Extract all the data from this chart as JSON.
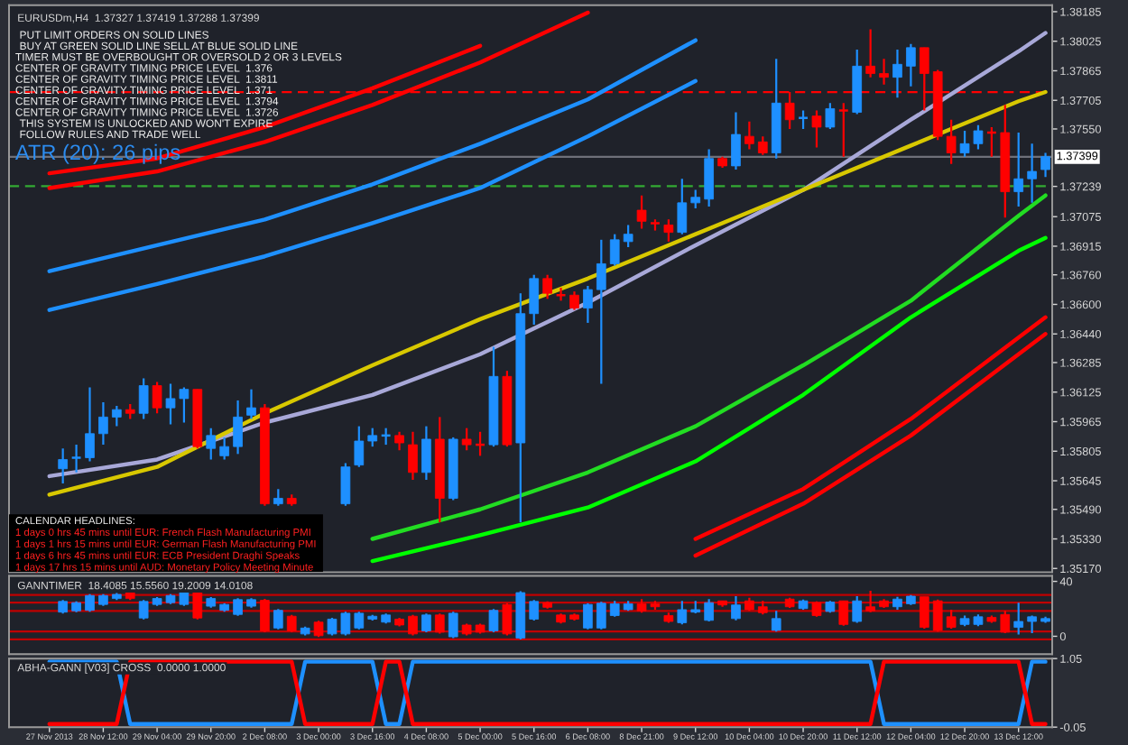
{
  "chart_data": [
    {
      "type": "candlestick",
      "title": "EURUSDm,H4  1.37327 1.37419 1.37288 1.37399",
      "ohlc": [
        null,
        [
          1.3571,
          1.3582,
          1.3563,
          1.3576
        ],
        [
          1.3577,
          1.3584,
          1.3569,
          1.3577
        ],
        [
          1.3577,
          1.3615,
          1.3575,
          1.359
        ],
        [
          1.359,
          1.3607,
          1.3584,
          1.3599
        ],
        [
          1.3599,
          1.3605,
          1.3594,
          1.3603
        ],
        [
          1.3603,
          1.3606,
          1.3598,
          1.3601
        ],
        [
          1.3601,
          1.362,
          1.3598,
          1.3616
        ],
        [
          1.3616,
          1.3618,
          1.3601,
          1.3604
        ],
        [
          1.3604,
          1.3617,
          1.3595,
          1.3609
        ],
        [
          1.3609,
          1.3615,
          1.3596,
          1.3614
        ],
        [
          1.3614,
          1.3614,
          1.3582,
          1.3583
        ],
        [
          1.3582,
          1.3593,
          1.3576,
          1.3589
        ],
        [
          1.3578,
          1.3588,
          1.3576,
          1.3583
        ],
        [
          1.3583,
          1.3608,
          1.3579,
          1.3599
        ],
        [
          1.36,
          1.3614,
          1.3598,
          1.3604
        ],
        [
          1.3604,
          1.3606,
          1.3551,
          1.3552
        ],
        [
          1.3552,
          1.356,
          1.3551,
          1.3555
        ],
        [
          1.3555,
          1.3557,
          1.3551,
          1.3552
        ],
        null,
        null,
        null,
        [
          1.3552,
          1.3574,
          1.3551,
          1.3572
        ],
        [
          1.3573,
          1.3594,
          1.3572,
          1.3586
        ],
        [
          1.3586,
          1.3593,
          1.3583,
          1.3589
        ],
        [
          1.3589,
          1.3593,
          1.3584,
          1.3589
        ],
        [
          1.3589,
          1.3591,
          1.3581,
          1.3585
        ],
        [
          1.3584,
          1.3591,
          1.3565,
          1.3569
        ],
        [
          1.3569,
          1.3594,
          1.3565,
          1.3587
        ],
        [
          1.3587,
          1.3599,
          1.3542,
          1.3555
        ],
        [
          1.3555,
          1.3588,
          1.3554,
          1.3587
        ],
        [
          1.3587,
          1.3593,
          1.3581,
          1.3584
        ],
        [
          1.3584,
          1.3591,
          1.3578,
          1.3584
        ],
        [
          1.3584,
          1.3637,
          1.3583,
          1.3621
        ],
        [
          1.3621,
          1.3624,
          1.3583,
          1.3584
        ],
        [
          1.3585,
          1.3666,
          1.3542,
          1.3655
        ],
        [
          1.3655,
          1.3676,
          1.3649,
          1.3674
        ],
        [
          1.3674,
          1.3676,
          1.3663,
          1.3666
        ],
        [
          1.3665,
          1.3669,
          1.3662,
          1.3665
        ],
        [
          1.3665,
          1.3667,
          1.3657,
          1.3658
        ],
        [
          1.3658,
          1.367,
          1.365,
          1.3668
        ],
        [
          1.3668,
          1.3695,
          1.3617,
          1.3682
        ],
        [
          1.3682,
          1.3698,
          1.3681,
          1.3695
        ],
        [
          1.3694,
          1.3703,
          1.3691,
          1.3698
        ],
        [
          1.3711,
          1.3719,
          1.3701,
          1.3705
        ],
        [
          1.3704,
          1.3706,
          1.37,
          1.3704
        ],
        [
          1.3703,
          1.3706,
          1.3694,
          1.3699
        ],
        [
          1.3699,
          1.3728,
          1.3698,
          1.3715
        ],
        [
          1.3715,
          1.3722,
          1.3712,
          1.3718
        ],
        [
          1.3717,
          1.3744,
          1.3713,
          1.3739
        ],
        [
          1.3739,
          1.374,
          1.3734,
          1.3735
        ],
        [
          1.3735,
          1.3764,
          1.3733,
          1.3752
        ],
        [
          1.3751,
          1.3759,
          1.3744,
          1.3747
        ],
        [
          1.3748,
          1.3751,
          1.3741,
          1.3742
        ],
        [
          1.3742,
          1.3793,
          1.3739,
          1.3769
        ],
        [
          1.3769,
          1.3775,
          1.3755,
          1.376
        ],
        [
          1.3761,
          1.3765,
          1.3755,
          1.3761
        ],
        [
          1.3762,
          1.3765,
          1.3745,
          1.3756
        ],
        [
          1.3756,
          1.3769,
          1.3755,
          1.3766
        ],
        [
          1.3765,
          1.3769,
          1.374,
          1.3765
        ],
        [
          1.3764,
          1.3798,
          1.3763,
          1.3789
        ],
        [
          1.3789,
          1.3809,
          1.3783,
          1.3785
        ],
        [
          1.3785,
          1.3793,
          1.3779,
          1.3783
        ],
        [
          1.3783,
          1.3798,
          1.3772,
          1.379
        ],
        [
          1.3789,
          1.3801,
          1.3778,
          1.3799
        ],
        [
          1.3799,
          1.3799,
          1.3765,
          1.3785
        ],
        [
          1.3786,
          1.3787,
          1.3749,
          1.3751
        ],
        [
          1.3751,
          1.376,
          1.3736,
          1.3742
        ],
        [
          1.3742,
          1.3754,
          1.374,
          1.3747
        ],
        [
          1.3747,
          1.3757,
          1.3744,
          1.3754
        ],
        [
          1.3753,
          1.3756,
          1.374,
          1.3753
        ],
        [
          1.3753,
          1.3768,
          1.3707,
          1.3721
        ],
        [
          1.3721,
          1.3753,
          1.3713,
          1.3728
        ],
        [
          1.3728,
          1.3747,
          1.3715,
          1.3732
        ],
        [
          1.3733,
          1.3742,
          1.3729,
          1.374
        ]
      ],
      "colors": [
        null,
        "#1e90ff",
        "#1e90ff",
        "#1e90ff",
        "#1e90ff",
        "#1e90ff",
        "#ff0000",
        "#1e90ff",
        "#ff0000",
        "#1e90ff",
        "#1e90ff",
        "#ff0000",
        "#1e90ff",
        "#1e90ff",
        "#1e90ff",
        "#1e90ff",
        "#ff0000",
        "#1e90ff",
        "#ff0000",
        null,
        null,
        null,
        "#1e90ff",
        "#1e90ff",
        "#1e90ff",
        "#1e90ff",
        "#ff0000",
        "#ff0000",
        "#1e90ff",
        "#ff0000",
        "#1e90ff",
        "#ff0000",
        "#ff0000",
        "#1e90ff",
        "#ff0000",
        "#1e90ff",
        "#1e90ff",
        "#ff0000",
        "#ff0000",
        "#ff0000",
        "#1e90ff",
        "#1e90ff",
        "#1e90ff",
        "#1e90ff",
        "#ff0000",
        "#ff0000",
        "#ff0000",
        "#1e90ff",
        "#1e90ff",
        "#1e90ff",
        "#ff0000",
        "#1e90ff",
        "#ff0000",
        "#ff0000",
        "#1e90ff",
        "#ff0000",
        "#1e90ff",
        "#ff0000",
        "#1e90ff",
        "#ff0000",
        "#1e90ff",
        "#ff0000",
        "#ff0000",
        "#1e90ff",
        "#1e90ff",
        "#ff0000",
        "#ff0000",
        "#ff0000",
        "#1e90ff",
        "#1e90ff",
        "#ff0000",
        "#ff0000",
        "#1e90ff",
        "#1e90ff",
        "#1e90ff"
      ],
      "series": [
        {
          "type": "line",
          "color": "#a8a8d8",
          "values": [
            1.3567,
            null,
            null,
            null,
            null,
            null,
            null,
            null,
            1.3576,
            null,
            null,
            null,
            null,
            null,
            null,
            null,
            1.3596,
            null,
            null,
            null,
            null,
            null,
            null,
            null,
            1.3611,
            null,
            null,
            null,
            null,
            null,
            null,
            null,
            1.3633,
            null,
            null,
            null,
            null,
            null,
            null,
            null,
            1.3661,
            null,
            null,
            null,
            null,
            null,
            null,
            null,
            1.3692,
            null,
            null,
            null,
            null,
            null,
            null,
            null,
            1.3722,
            null,
            null,
            null,
            null,
            null,
            null,
            null,
            1.376,
            null,
            null,
            null,
            null,
            null,
            null,
            null,
            1.3797,
            null,
            1.3807
          ]
        },
        {
          "type": "line",
          "color": "#d8c800",
          "values": [
            1.3557,
            null,
            null,
            null,
            null,
            null,
            null,
            null,
            1.3572,
            null,
            null,
            null,
            null,
            null,
            null,
            null,
            1.3601,
            null,
            null,
            null,
            null,
            null,
            null,
            null,
            1.3627,
            null,
            null,
            null,
            null,
            null,
            null,
            null,
            1.3652,
            null,
            null,
            null,
            null,
            null,
            null,
            null,
            1.3674,
            null,
            null,
            null,
            null,
            null,
            null,
            null,
            1.3698,
            null,
            null,
            null,
            null,
            null,
            null,
            null,
            1.3722,
            null,
            null,
            null,
            null,
            null,
            null,
            null,
            1.3746,
            null,
            null,
            null,
            null,
            null,
            null,
            null,
            1.377,
            null,
            1.3775
          ]
        },
        {
          "type": "line",
          "color": "#1e90ff",
          "values": [
            1.3678,
            null,
            null,
            null,
            null,
            null,
            null,
            null,
            1.3692,
            null,
            null,
            null,
            null,
            null,
            null,
            null,
            1.3706,
            null,
            null,
            null,
            null,
            null,
            null,
            null,
            1.3725,
            null,
            null,
            null,
            null,
            null,
            null,
            null,
            1.3747,
            null,
            null,
            null,
            null,
            null,
            null,
            null,
            1.3771,
            null,
            null,
            null,
            null,
            null,
            null,
            null,
            1.3803,
            null,
            null,
            null,
            null,
            null,
            null,
            null,
            null,
            null,
            null,
            null,
            null,
            null,
            null,
            null,
            null,
            null,
            null,
            null,
            null,
            null,
            null,
            null,
            null,
            null,
            null
          ]
        },
        {
          "type": "line",
          "color": "#1e90ff",
          "values": [
            1.3657,
            null,
            null,
            null,
            null,
            null,
            null,
            null,
            1.3671,
            null,
            null,
            null,
            null,
            null,
            null,
            null,
            1.3686,
            null,
            null,
            null,
            null,
            null,
            null,
            null,
            1.3704,
            null,
            null,
            null,
            null,
            null,
            null,
            null,
            1.3723,
            null,
            null,
            null,
            null,
            null,
            null,
            null,
            1.3751,
            null,
            null,
            null,
            null,
            null,
            null,
            null,
            1.3781,
            null,
            null,
            null,
            null,
            null,
            null,
            null,
            null,
            null,
            null,
            null,
            null,
            null,
            null,
            null,
            null,
            null,
            null,
            null,
            null,
            null,
            null,
            null,
            null,
            null,
            null
          ]
        },
        {
          "type": "line",
          "color": "#00ff00",
          "values": [
            null,
            null,
            null,
            null,
            null,
            null,
            null,
            null,
            null,
            null,
            null,
            null,
            null,
            null,
            null,
            null,
            null,
            null,
            null,
            null,
            null,
            null,
            null,
            null,
            1.3521,
            null,
            null,
            null,
            null,
            null,
            null,
            null,
            1.3535,
            null,
            null,
            null,
            null,
            null,
            null,
            null,
            1.355,
            null,
            null,
            null,
            null,
            null,
            null,
            null,
            1.3575,
            null,
            null,
            null,
            null,
            null,
            null,
            null,
            1.3611,
            null,
            null,
            null,
            null,
            null,
            null,
            null,
            1.3653,
            null,
            null,
            null,
            null,
            null,
            null,
            null,
            1.3689,
            null,
            1.3696
          ]
        },
        {
          "type": "line",
          "color": "#22dd22",
          "values": [
            null,
            null,
            null,
            null,
            null,
            null,
            null,
            null,
            null,
            null,
            null,
            null,
            null,
            null,
            null,
            null,
            null,
            null,
            null,
            null,
            null,
            null,
            null,
            null,
            1.3533,
            null,
            null,
            null,
            null,
            null,
            null,
            null,
            1.3549,
            null,
            null,
            null,
            null,
            null,
            null,
            null,
            1.3569,
            null,
            null,
            null,
            null,
            null,
            null,
            null,
            1.3594,
            null,
            null,
            null,
            null,
            null,
            null,
            null,
            1.3627,
            null,
            null,
            null,
            null,
            null,
            null,
            null,
            1.3662,
            null,
            null,
            null,
            null,
            null,
            null,
            null,
            1.3708,
            null,
            1.3719
          ]
        },
        {
          "type": "line",
          "color": "#ff0000",
          "values": [
            1.3731,
            null,
            null,
            null,
            null,
            null,
            null,
            null,
            1.3739,
            null,
            null,
            null,
            null,
            null,
            null,
            null,
            1.3756,
            null,
            null,
            null,
            null,
            null,
            null,
            null,
            1.3777,
            null,
            null,
            null,
            null,
            null,
            null,
            null,
            1.38,
            null,
            null,
            null,
            null,
            null,
            null,
            null,
            null,
            null,
            null,
            null,
            null,
            null,
            null,
            null,
            null,
            null,
            null,
            null,
            null,
            null,
            null,
            null,
            null,
            null,
            null,
            null,
            null,
            null,
            null,
            null,
            null,
            null,
            null,
            null,
            null,
            null,
            null,
            null,
            null,
            null,
            null
          ]
        },
        {
          "type": "line",
          "color": "#ff0000",
          "values": [
            1.3723,
            null,
            null,
            null,
            null,
            null,
            null,
            null,
            1.3732,
            null,
            null,
            null,
            null,
            null,
            null,
            null,
            1.3748,
            null,
            null,
            null,
            null,
            null,
            null,
            null,
            1.3768,
            null,
            null,
            null,
            null,
            null,
            null,
            null,
            1.3791,
            null,
            null,
            null,
            null,
            null,
            null,
            null,
            1.3818,
            null,
            null,
            null,
            null,
            null,
            null,
            null,
            null,
            null,
            null,
            null,
            null,
            null,
            null,
            null,
            null,
            null,
            null,
            null,
            null,
            null,
            null,
            null,
            null,
            null,
            null,
            null,
            null,
            null,
            null,
            null,
            null,
            null,
            null
          ]
        },
        {
          "type": "line",
          "color": "#ff0000",
          "values": [
            null,
            null,
            null,
            null,
            null,
            null,
            null,
            null,
            null,
            null,
            null,
            null,
            null,
            null,
            null,
            null,
            null,
            null,
            null,
            null,
            null,
            null,
            null,
            null,
            null,
            null,
            null,
            null,
            null,
            null,
            null,
            null,
            null,
            null,
            null,
            null,
            null,
            null,
            null,
            null,
            null,
            null,
            null,
            null,
            null,
            null,
            null,
            null,
            1.3533,
            null,
            null,
            null,
            null,
            null,
            null,
            null,
            1.356,
            null,
            null,
            null,
            null,
            null,
            null,
            null,
            1.3598,
            null,
            null,
            null,
            null,
            null,
            null,
            null,
            1.3642,
            null,
            1.3653
          ]
        },
        {
          "type": "line",
          "color": "#ff0000",
          "values": [
            null,
            null,
            null,
            null,
            null,
            null,
            null,
            null,
            null,
            null,
            null,
            null,
            null,
            null,
            null,
            null,
            null,
            null,
            null,
            null,
            null,
            null,
            null,
            null,
            null,
            null,
            null,
            null,
            null,
            null,
            null,
            null,
            null,
            null,
            null,
            null,
            null,
            null,
            null,
            null,
            null,
            null,
            null,
            null,
            null,
            null,
            null,
            null,
            1.3524,
            null,
            null,
            null,
            null,
            null,
            null,
            null,
            1.3552,
            null,
            null,
            null,
            null,
            null,
            null,
            null,
            1.3589,
            null,
            null,
            null,
            null,
            null,
            null,
            null,
            1.3633,
            null,
            1.3644
          ]
        }
      ],
      "ylim": [
        1.3515,
        1.3822
      ],
      "yticks": [
        1.38185,
        1.38025,
        1.37865,
        1.37705,
        {
          "value": 1.3755,
          "label": "1.37550"
        },
        1.37239,
        1.37075,
        1.36915,
        {
          "value": 1.3676,
          "label": "1.36760"
        },
        {
          "value": 1.366,
          "label": "1.36600"
        },
        {
          "value": 1.3644,
          "label": "1.36440"
        },
        1.36285,
        1.36125,
        1.35965,
        1.35805,
        1.35645,
        {
          "value": 1.3549,
          "label": "1.35490"
        },
        {
          "value": 1.3533,
          "label": "1.35330"
        },
        {
          "value": 1.3517,
          "label": "1.35170"
        }
      ],
      "ref_lines": [
        {
          "axis": "y",
          "value": 1.3775,
          "color": "#ff0000",
          "line_style": "dashed"
        },
        {
          "axis": "y",
          "value": 1.3724,
          "color": "#33aa33",
          "line_style": "dashed"
        },
        {
          "axis": "y",
          "value": 1.37399,
          "color": "#6e7079",
          "line_style": "solid",
          "label": "1.37399"
        }
      ],
      "annotations": [
        "PUT LIMIT ORDERS ON SOLID LINES",
        "BUY AT GREEN SOLID LINE SELL AT BLUE SOLID LINE",
        "TIMER MUST BE OVERBOUGHT OR OVERSOLD 2 OR 3 LEVELS",
        "CENTER OF GRAVITY TIMING PRICE LEVEL  1.376",
        "CENTER OF GRAVITY TIMING PRICE LEVEL  1.3811",
        "CENTER OF GRAVITY TIMING PRICE LEVEL  1.371",
        "CENTER OF GRAVITY TIMING PRICE LEVEL  1.3794",
        "CENTER OF GRAVITY TIMING PRICE LEVEL  1.3726",
        "THIS SYSTEM IS UNLOCKED AND WON'T EXPIRE",
        "FOLLOW RULES AND TRADE WELL",
        "ATR (20): 26 pips",
        "CALENDAR HEADLINES:",
        "1 days 0 hrs 45 mins until EUR: French Flash Manufacturing PMI",
        "1 days 1 hrs 15 mins until EUR: German Flash Manufacturing PMI",
        "1 days 6 hrs 45 mins until EUR: ECB President Draghi Speaks",
        "1 days 17 hrs 15 mins until AUD: Monetary Policy Meeting Minute"
      ],
      "tick_labels": "y",
      "grid": false
    },
    {
      "type": "candlestick",
      "title": "GANNTIMER  18.4085 15.5560 19.2009 14.0108",
      "ohlc": [
        null,
        [
          17.6,
          26.4,
          16.6,
          25.4
        ],
        [
          18.5,
          25.5,
          17.5,
          24.5
        ],
        [
          18.9,
          30.7,
          17.9,
          29.7
        ],
        [
          23.2,
          30.7,
          22.2,
          29.7
        ],
        [
          27.5,
          31.5,
          26.5,
          30.5
        ],
        [
          31.8,
          32.8,
          26.5,
          27.5
        ],
        [
          13.3,
          26.4,
          12.3,
          25.4
        ],
        [
          23.2,
          28.5,
          22.2,
          27.5
        ],
        [
          24.5,
          30.7,
          23.5,
          29.7
        ],
        [
          23.2,
          33.7,
          22.2,
          32.7
        ],
        [
          32.7,
          33.7,
          12.3,
          13.3
        ],
        [
          21.9,
          28.5,
          20.9,
          27.5
        ],
        [
          18.9,
          24.2,
          17.9,
          23.2
        ],
        [
          15.9,
          27.7,
          14.9,
          26.7
        ],
        [
          21.9,
          27.7,
          20.9,
          26.7
        ],
        [
          26.2,
          27.2,
          2.9,
          3.9
        ],
        [
          6.0,
          19.9,
          5.0,
          18.9
        ],
        [
          14.6,
          15.6,
          2.9,
          3.9
        ],
        [
          1.7,
          7.0,
          0.7,
          6.0
        ],
        [
          10.3,
          11.3,
          -0.6,
          0.4
        ],
        [
          1.7,
          13.5,
          0.7,
          12.5
        ],
        [
          1.7,
          17.8,
          0.7,
          16.8
        ],
        [
          6.0,
          17.8,
          5.0,
          16.8
        ],
        [
          12.5,
          15.6,
          11.5,
          14.6
        ],
        [
          10.3,
          16.5,
          9.3,
          15.5
        ],
        [
          12.5,
          13.5,
          7.2,
          8.2
        ],
        [
          14.6,
          15.6,
          0.7,
          1.7
        ],
        [
          3.9,
          16.5,
          2.9,
          15.5
        ],
        [
          15.5,
          16.5,
          2.0,
          3.0
        ],
        [
          -0.4,
          17.8,
          -1.4,
          16.8
        ],
        [
          8.2,
          9.2,
          0.7,
          1.7
        ],
        [
          8.2,
          9.2,
          2.0,
          3.0
        ],
        [
          3.9,
          19.9,
          2.9,
          18.9
        ],
        [
          23.2,
          24.2,
          0.7,
          1.7
        ],
        [
          -1.3,
          32.8,
          -2.3,
          31.8
        ],
        [
          12.5,
          26.4,
          11.5,
          25.4
        ],
        [
          24.5,
          25.5,
          20.1,
          21.1
        ],
        [
          15.5,
          16.5,
          9.3,
          10.3
        ],
        [
          15.5,
          16.5,
          11.5,
          12.5
        ],
        [
          6.0,
          24.2,
          5.0,
          23.2
        ],
        [
          6.0,
          25.1,
          5.0,
          24.1
        ],
        [
          15.1,
          25.8,
          14.2,
          23.7
        ],
        [
          19.4,
          25.8,
          18.5,
          23.7
        ],
        [
          23.7,
          27.1,
          17.2,
          18.5
        ],
        [
          23.7,
          25.8,
          19.4,
          21.5
        ],
        [
          15.1,
          17.2,
          9.9,
          10.8
        ],
        [
          9.9,
          25.8,
          8.6,
          19.4
        ],
        [
          17.6,
          25.8,
          16.8,
          19.4
        ],
        [
          11.6,
          27.1,
          10.8,
          24.5
        ],
        [
          25.8,
          25.8,
          21.5,
          22.8
        ],
        [
          12.9,
          29.2,
          11.6,
          22.8
        ],
        [
          25.8,
          28.0,
          18.5,
          19.4
        ],
        [
          21.5,
          25.8,
          15.9,
          17.2
        ],
        [
          4.3,
          18.5,
          3.4,
          12.9
        ],
        [
          27.1,
          28.0,
          20.6,
          21.5
        ],
        [
          20.2,
          26.7,
          19.4,
          25.8
        ],
        [
          24.5,
          25.4,
          14.2,
          15.1
        ],
        [
          18.1,
          25.8,
          17.2,
          24.9
        ],
        [
          25.8,
          25.8,
          7.7,
          8.6
        ],
        [
          10.8,
          29.2,
          9.9,
          25.8
        ],
        [
          21.5,
          33.1,
          17.6,
          18.5
        ],
        [
          25.8,
          27.1,
          20.6,
          21.5
        ],
        [
          21.5,
          28.8,
          19.4,
          27.1
        ],
        [
          23.7,
          30.1,
          22.8,
          29.2
        ],
        [
          28.8,
          28.8,
          5.6,
          6.5
        ],
        [
          25.8,
          26.7,
          3.4,
          4.3
        ],
        [
          14.2,
          19.4,
          5.6,
          6.5
        ],
        [
          8.6,
          15.1,
          7.3,
          12.9
        ],
        [
          8.6,
          15.9,
          7.3,
          14.2
        ],
        [
          13.8,
          15.1,
          9.9,
          10.8
        ],
        [
          15.9,
          18.5,
          2.2,
          3.0
        ],
        [
          6.5,
          24.5,
          1.3,
          10.8
        ],
        [
          10.8,
          15.1,
          2.2,
          14.2
        ],
        [
          10.8,
          14.2,
          9.9,
          12.9
        ]
      ],
      "colors": [
        null,
        "#1e90ff",
        "#1e90ff",
        "#1e90ff",
        "#1e90ff",
        "#1e90ff",
        "#ff0000",
        "#1e90ff",
        "#1e90ff",
        "#1e90ff",
        "#1e90ff",
        "#ff0000",
        "#1e90ff",
        "#1e90ff",
        "#1e90ff",
        "#1e90ff",
        "#ff0000",
        "#1e90ff",
        "#ff0000",
        "#1e90ff",
        "#ff0000",
        "#1e90ff",
        "#1e90ff",
        "#1e90ff",
        "#1e90ff",
        "#1e90ff",
        "#ff0000",
        "#ff0000",
        "#1e90ff",
        "#ff0000",
        "#1e90ff",
        "#ff0000",
        "#ff0000",
        "#1e90ff",
        "#ff0000",
        "#1e90ff",
        "#1e90ff",
        "#ff0000",
        "#ff0000",
        "#ff0000",
        "#1e90ff",
        "#1e90ff",
        "#1e90ff",
        "#1e90ff",
        "#ff0000",
        "#ff0000",
        "#ff0000",
        "#1e90ff",
        "#1e90ff",
        "#1e90ff",
        "#ff0000",
        "#1e90ff",
        "#ff0000",
        "#ff0000",
        "#1e90ff",
        "#ff0000",
        "#1e90ff",
        "#ff0000",
        "#1e90ff",
        "#ff0000",
        "#1e90ff",
        "#ff0000",
        "#ff0000",
        "#1e90ff",
        "#1e90ff",
        "#ff0000",
        "#ff0000",
        "#ff0000",
        "#1e90ff",
        "#1e90ff",
        "#ff0000",
        "#ff0000",
        "#1e90ff",
        "#1e90ff",
        "#1e90ff"
      ],
      "ylim": [
        -13,
        44
      ],
      "yticks": [
        40,
        0
      ],
      "ref_lines": [
        {
          "axis": "y",
          "value": 30.1,
          "color": "#c00000",
          "line_style": "solid"
        },
        {
          "axis": "y",
          "value": 24.5,
          "color": "#c00000",
          "line_style": "solid"
        },
        {
          "axis": "y",
          "value": 18.5,
          "color": "#c00000",
          "line_style": "solid"
        },
        {
          "axis": "y",
          "value": 3.5,
          "color": "#c00000",
          "line_style": "solid"
        },
        {
          "axis": "y",
          "value": -2.2,
          "color": "#c00000",
          "line_style": "solid"
        }
      ],
      "tick_labels": "y",
      "grid": false
    },
    {
      "type": "line",
      "title": "ABHA-GANN [V03] CROSS  0.0000 1.0000",
      "categories": [
        "27 Nov 2013",
        null,
        null,
        null,
        "28 Nov 12:00",
        null,
        null,
        null,
        "29 Nov 04:00",
        null,
        null,
        null,
        "29 Nov 20:00",
        null,
        null,
        null,
        "2 Dec 08:00",
        null,
        null,
        null,
        "3 Dec 00:00",
        null,
        null,
        null,
        "3 Dec 16:00",
        null,
        null,
        null,
        "4 Dec 08:00",
        null,
        null,
        null,
        "5 Dec 00:00",
        null,
        null,
        null,
        "5 Dec 16:00",
        null,
        null,
        null,
        "6 Dec 08:00",
        null,
        null,
        null,
        "8 Dec 21:00",
        null,
        null,
        null,
        "9 Dec 12:00",
        null,
        null,
        null,
        "10 Dec 04:00",
        null,
        null,
        null,
        "10 Dec 20:00",
        null,
        null,
        null,
        "11 Dec 12:00",
        null,
        null,
        null,
        "12 Dec 04:00",
        null,
        null,
        null,
        "12 Dec 20:00",
        null,
        null,
        null,
        "13 Dec 12:00",
        null,
        null
      ],
      "series": [
        {
          "color": "#1e90ff",
          "values": [
            1,
            1,
            1,
            1,
            1,
            1,
            0,
            0,
            0,
            0,
            0,
            0,
            0,
            0,
            0,
            0,
            0,
            0,
            0,
            1,
            1,
            1,
            1,
            1,
            1,
            0,
            0,
            1,
            1,
            1,
            1,
            1,
            1,
            1,
            1,
            1,
            1,
            1,
            1,
            1,
            1,
            1,
            1,
            1,
            1,
            1,
            1,
            1,
            1,
            1,
            1,
            1,
            1,
            1,
            1,
            1,
            1,
            1,
            1,
            1,
            1,
            1,
            0,
            0,
            0,
            0,
            0,
            0,
            0,
            0,
            0,
            0,
            0,
            1,
            1
          ]
        },
        {
          "color": "#ff0000",
          "values": [
            0,
            0,
            0,
            0,
            0,
            0,
            1,
            1,
            1,
            1,
            1,
            1,
            1,
            1,
            1,
            1,
            1,
            1,
            1,
            0,
            0,
            0,
            0,
            0,
            0,
            1,
            1,
            0,
            0,
            0,
            0,
            0,
            0,
            0,
            0,
            0,
            0,
            0,
            0,
            0,
            0,
            0,
            0,
            0,
            0,
            0,
            0,
            0,
            0,
            0,
            0,
            0,
            0,
            0,
            0,
            0,
            0,
            0,
            0,
            0,
            0,
            0,
            1,
            1,
            1,
            1,
            1,
            1,
            1,
            1,
            1,
            1,
            1,
            0,
            0
          ]
        }
      ],
      "ylim": [
        -0.05,
        1.05
      ],
      "yticks": [
        1.05,
        -0.05
      ],
      "grid": false
    }
  ]
}
